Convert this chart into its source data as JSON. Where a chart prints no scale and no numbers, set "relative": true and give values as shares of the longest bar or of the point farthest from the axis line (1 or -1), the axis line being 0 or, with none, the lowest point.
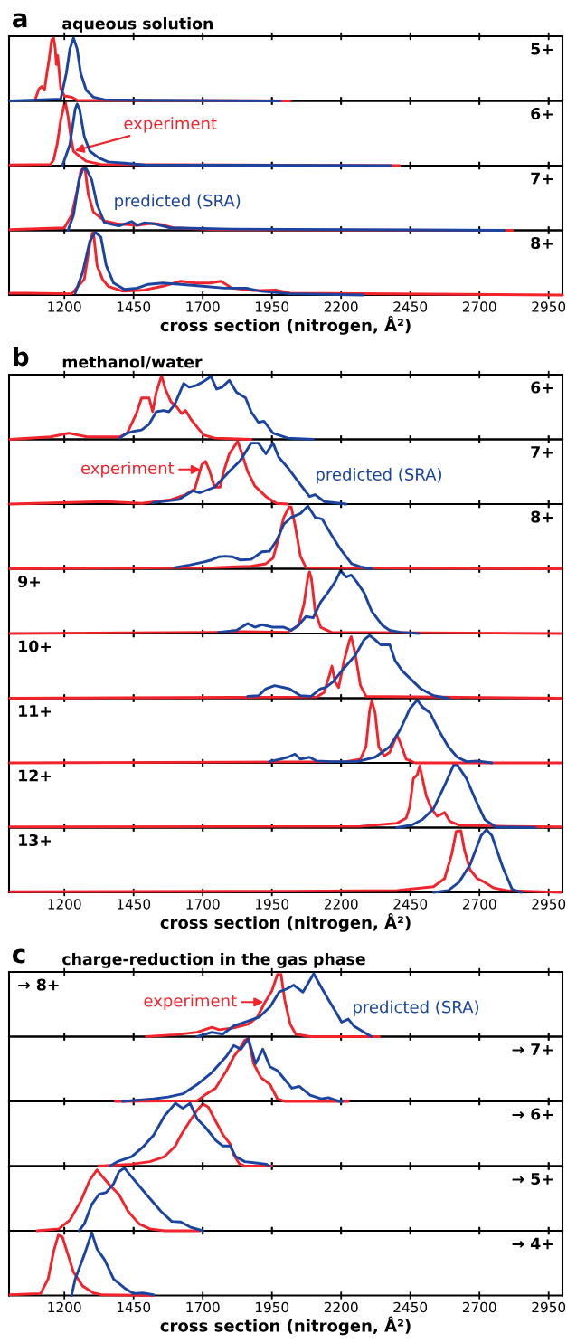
{
  "chart_data": [
    {
      "type": "line",
      "relative": true,
      "title": "a",
      "subtitle": "aqueous solution",
      "annotations": [
        "5+"
      ],
      "xlim": [
        1000,
        3000
      ],
      "xticks": [
        1200,
        1450,
        1700,
        1950,
        2200,
        2450,
        2700,
        2950
      ],
      "tick_labels": false,
      "series": [
        {
          "color": "#f2232b",
          "x": [
            1095,
            1108,
            1118,
            1128,
            1134,
            1145,
            1154,
            1161,
            1167,
            1171,
            1176,
            1187,
            1200,
            1226,
            1246,
            2016
          ],
          "values": [
            0.03,
            0.19,
            0.23,
            0.17,
            0.36,
            0.67,
            0.97,
            1.0,
            0.83,
            0.58,
            0.72,
            0.19,
            0.08,
            0.06,
            0.01,
            0
          ]
        },
        {
          "color": "#1a44a0",
          "x": [
            1003,
            1187,
            1207,
            1220,
            1233,
            1246,
            1259,
            1279,
            1305,
            1345,
            1490,
            1980
          ],
          "values": [
            0,
            0.03,
            0.44,
            0.83,
            1.0,
            0.83,
            0.44,
            0.17,
            0.06,
            0.02,
            0.01,
            0
          ]
        }
      ]
    },
    {
      "type": "line",
      "relative": true,
      "annotations": [
        "6+"
      ],
      "xlim": [
        1000,
        3000
      ],
      "xticks": [
        1200,
        1450,
        1700,
        1950,
        2200,
        2450,
        2700,
        2950
      ],
      "tick_labels": false,
      "series": [
        {
          "name": "experiment",
          "color": "#f2232b",
          "x": [
            1003,
            1150,
            1161,
            1174,
            1187,
            1200,
            1204,
            1213,
            1223,
            1233,
            1246,
            1279,
            1332,
            2411
          ],
          "values": [
            0.01,
            0.02,
            0.09,
            0.34,
            0.73,
            0.98,
            1.0,
            0.79,
            0.46,
            0.23,
            0.18,
            0.07,
            0.02,
            0
          ]
        },
        {
          "color": "#1a44a0",
          "x": [
            1193,
            1220,
            1239,
            1246,
            1255,
            1272,
            1292,
            1325,
            1358,
            1417,
            1490,
            2380
          ],
          "values": [
            0,
            0.34,
            0.9,
            0.98,
            0.9,
            0.46,
            0.23,
            0.12,
            0.06,
            0.04,
            0.01,
            0
          ]
        }
      ]
    },
    {
      "type": "line",
      "relative": true,
      "annotations": [
        "7+"
      ],
      "xlim": [
        1000,
        3000
      ],
      "xticks": [
        1200,
        1450,
        1700,
        1950,
        2200,
        2450,
        2700,
        2950
      ],
      "tick_labels": false,
      "series": [
        {
          "color": "#f2232b",
          "x": [
            1003,
            1200,
            1226,
            1246,
            1259,
            1266,
            1274,
            1286,
            1305,
            1345,
            1397,
            1463,
            1516,
            1542,
            1595,
            1753,
            2819
          ],
          "values": [
            0.01,
            0.04,
            0.24,
            0.63,
            0.94,
            0.98,
            1.0,
            0.58,
            0.29,
            0.15,
            0.1,
            0.08,
            0.11,
            0.1,
            0.04,
            0.01,
            0
          ]
        },
        {
          "name": "predicted (SRA)",
          "color": "#1a44a0",
          "x": [
            1213,
            1233,
            1253,
            1266,
            1279,
            1299,
            1318,
            1345,
            1397,
            1443,
            1463,
            1490,
            1529,
            1582,
            1805,
            2790
          ],
          "values": [
            0,
            0.24,
            0.8,
            0.97,
            0.98,
            0.8,
            0.41,
            0.12,
            0.07,
            0.14,
            0.08,
            0.12,
            0.1,
            0.04,
            0.02,
            0
          ]
        }
      ]
    },
    {
      "type": "line",
      "relative": true,
      "annotations": [
        "8+"
      ],
      "xlim": [
        1000,
        3000
      ],
      "xticks": [
        1200,
        1450,
        1700,
        1950,
        2200,
        2450,
        2700,
        2950
      ],
      "tick_labels": "x",
      "xlabel": "cross section (nitrogen, Å²)",
      "series": [
        {
          "color": "#f2232b",
          "x": [
            1003,
            1068,
            1226,
            1272,
            1292,
            1301,
            1305,
            1318,
            1338,
            1358,
            1411,
            1490,
            1555,
            1621,
            1674,
            1726,
            1766,
            1805,
            1884,
            1963,
            2016,
            3000
          ],
          "values": [
            0.03,
            0.03,
            0.02,
            0.25,
            0.81,
            0.98,
            1.0,
            0.47,
            0.25,
            0.14,
            0.06,
            0.08,
            0.14,
            0.22,
            0.19,
            0.19,
            0.22,
            0.11,
            0.07,
            0.08,
            0.03,
            0
          ]
        },
        {
          "color": "#1a44a0",
          "x": [
            1239,
            1266,
            1292,
            1312,
            1332,
            1351,
            1378,
            1417,
            1463,
            1503,
            1555,
            1621,
            1700,
            1779,
            1858,
            1911,
            2016,
            2279
          ],
          "values": [
            0.03,
            0.36,
            0.86,
            1.0,
            0.92,
            0.47,
            0.19,
            0.09,
            0.11,
            0.17,
            0.19,
            0.17,
            0.14,
            0.11,
            0.11,
            0.06,
            0.02,
            0
          ]
        }
      ]
    },
    {
      "type": "line",
      "relative": true,
      "title": "b",
      "subtitle": "methanol/water",
      "annotations": [
        "6+"
      ],
      "xlim": [
        1000,
        3000
      ],
      "xticks": [
        1200,
        1450,
        1700,
        1950,
        2200,
        2450,
        2700,
        2950
      ],
      "tick_labels": false,
      "series": [
        {
          "color": "#f2232b",
          "x": [
            1003,
            1150,
            1216,
            1282,
            1400,
            1427,
            1460,
            1479,
            1506,
            1519,
            1532,
            1548,
            1552,
            1565,
            1585,
            1605,
            1624,
            1638,
            1657,
            1677,
            1703,
            1743,
            1875
          ],
          "values": [
            0,
            0.04,
            0.1,
            0.04,
            0.04,
            0.1,
            0.41,
            0.66,
            0.66,
            0.44,
            0.75,
            0.97,
            1.0,
            0.8,
            0.6,
            0.52,
            0.41,
            0.46,
            0.32,
            0.21,
            0.07,
            0.02,
            0
          ]
        },
        {
          "color": "#1a44a0",
          "x": [
            1400,
            1427,
            1453,
            1479,
            1506,
            1532,
            1558,
            1578,
            1598,
            1631,
            1651,
            1677,
            1703,
            1730,
            1750,
            1770,
            1796,
            1822,
            1855,
            1875,
            1901,
            1921,
            1954,
            2007,
            2099
          ],
          "values": [
            0.02,
            0.1,
            0.13,
            0.15,
            0.24,
            0.44,
            0.46,
            0.44,
            0.55,
            0.89,
            0.83,
            0.86,
            0.92,
            1.0,
            0.8,
            0.83,
            0.94,
            0.75,
            0.66,
            0.44,
            0.27,
            0.29,
            0.1,
            0.02,
            0
          ]
        }
      ]
    },
    {
      "type": "line",
      "relative": true,
      "annotations": [
        "7+"
      ],
      "xlim": [
        1000,
        3000
      ],
      "xticks": [
        1200,
        1450,
        1700,
        1950,
        2200,
        2450,
        2700,
        2950
      ],
      "tick_labels": false,
      "series": [
        {
          "name": "experiment",
          "color": "#f2232b",
          "x": [
            1003,
            1348,
            1479,
            1585,
            1638,
            1671,
            1697,
            1710,
            1723,
            1743,
            1763,
            1776,
            1796,
            1822,
            1826,
            1842,
            1862,
            1888,
            1928,
            1967,
            2007
          ],
          "values": [
            0,
            0.04,
            0.01,
            0.07,
            0.15,
            0.24,
            0.63,
            0.68,
            0.55,
            0.27,
            0.27,
            0.52,
            0.8,
            0.97,
            1.0,
            0.8,
            0.52,
            0.29,
            0.12,
            0.01,
            0
          ]
        },
        {
          "name": "predicted (SRA)",
          "color": "#1a44a0",
          "x": [
            1519,
            1611,
            1664,
            1690,
            1743,
            1796,
            1835,
            1875,
            1901,
            1928,
            1954,
            1974,
            2007,
            2046,
            2086,
            2106,
            2139,
            2218
          ],
          "values": [
            0.02,
            0.07,
            0.21,
            0.18,
            0.27,
            0.52,
            0.69,
            0.97,
            0.97,
            0.8,
            0.97,
            0.75,
            0.58,
            0.35,
            0.12,
            0.15,
            0.04,
            0
          ]
        }
      ]
    },
    {
      "type": "line",
      "relative": true,
      "annotations": [
        "8+"
      ],
      "xlim": [
        1000,
        3000
      ],
      "xticks": [
        1200,
        1450,
        1700,
        1950,
        2200,
        2450,
        2700,
        2950
      ],
      "tick_labels": false,
      "series": [
        {
          "color": "#f2232b",
          "x": [
            1003,
            1743,
            1875,
            1928,
            1954,
            1974,
            1993,
            2013,
            2020,
            2033,
            2053,
            2073,
            2995
          ],
          "values": [
            0,
            0.02,
            0.04,
            0.08,
            0.17,
            0.48,
            0.82,
            0.99,
            0.98,
            0.71,
            0.2,
            0.02,
            0
          ]
        },
        {
          "color": "#1a44a0",
          "x": [
            1599,
            1652,
            1705,
            1731,
            1757,
            1783,
            1809,
            1836,
            1875,
            1914,
            1941,
            1967,
            1993,
            2020,
            2053,
            2080,
            2106,
            2132,
            2165,
            2198,
            2238,
            2271,
            2311
          ],
          "values": [
            0.02,
            0.06,
            0.11,
            0.14,
            0.19,
            0.2,
            0.19,
            0.14,
            0.15,
            0.27,
            0.28,
            0.45,
            0.71,
            0.82,
            0.88,
            1.0,
            0.82,
            0.79,
            0.54,
            0.31,
            0.08,
            0.03,
            0
          ]
        }
      ]
    },
    {
      "type": "line",
      "relative": true,
      "annotations": [
        "9+"
      ],
      "xlim": [
        1000,
        3000
      ],
      "xticks": [
        1200,
        1450,
        1700,
        1950,
        2200,
        2450,
        2700,
        2950
      ],
      "tick_labels": false,
      "series": [
        {
          "color": "#f2232b",
          "x": [
            1003,
            1743,
            1848,
            2007,
            2046,
            2066,
            2079,
            2086,
            2093,
            2106,
            2126,
            2165,
            2995
          ],
          "values": [
            0,
            0.02,
            0.03,
            0.02,
            0.13,
            0.47,
            0.87,
            0.98,
            0.87,
            0.36,
            0.1,
            0.02,
            0
          ]
        },
        {
          "color": "#1a44a0",
          "x": [
            1756,
            1822,
            1862,
            1888,
            1914,
            1954,
            1993,
            2020,
            2046,
            2073,
            2099,
            2126,
            2152,
            2178,
            2198,
            2218,
            2237,
            2257,
            2283,
            2310,
            2349,
            2376,
            2415,
            2481
          ],
          "values": [
            0.02,
            0.05,
            0.16,
            0.1,
            0.14,
            0.1,
            0.1,
            0.05,
            0.13,
            0.27,
            0.25,
            0.5,
            0.65,
            0.82,
            1.0,
            0.9,
            0.93,
            0.82,
            0.65,
            0.36,
            0.13,
            0.05,
            0.02,
            0
          ]
        }
      ]
    },
    {
      "type": "line",
      "relative": true,
      "annotations": [
        "10+"
      ],
      "xlim": [
        1000,
        3000
      ],
      "xticks": [
        1200,
        1450,
        1700,
        1950,
        2200,
        2450,
        2700,
        2950
      ],
      "tick_labels": false,
      "series": [
        {
          "color": "#f2232b",
          "x": [
            1003,
            2112,
            2138,
            2158,
            2167,
            2178,
            2191,
            2211,
            2231,
            2237,
            2251,
            2270,
            2290,
            2995
          ],
          "values": [
            0,
            0.02,
            0.09,
            0.37,
            0.51,
            0.26,
            0.17,
            0.6,
            0.93,
            0.98,
            0.71,
            0.2,
            0.03,
            0
          ]
        },
        {
          "color": "#1a44a0",
          "x": [
            1862,
            1902,
            1928,
            1960,
            1993,
            2013,
            2053,
            2092,
            2125,
            2145,
            2171,
            2211,
            2251,
            2283,
            2303,
            2323,
            2343,
            2376,
            2395,
            2422,
            2455,
            2488,
            2534,
            2587
          ],
          "values": [
            0.03,
            0.04,
            0.15,
            0.2,
            0.17,
            0.15,
            0.04,
            0.03,
            0.15,
            0.17,
            0.26,
            0.48,
            0.68,
            0.93,
            1.0,
            0.93,
            0.85,
            0.85,
            0.6,
            0.43,
            0.29,
            0.15,
            0.04,
            0
          ]
        }
      ]
    },
    {
      "type": "line",
      "relative": true,
      "annotations": [
        "11+"
      ],
      "xlim": [
        1000,
        3000
      ],
      "xticks": [
        1200,
        1450,
        1700,
        1950,
        2200,
        2450,
        2700,
        2950
      ],
      "tick_labels": false,
      "series": [
        {
          "color": "#f2232b",
          "x": [
            1003,
            2218,
            2270,
            2290,
            2303,
            2311,
            2323,
            2336,
            2356,
            2376,
            2395,
            2402,
            2415,
            2435,
            2468,
            2995
          ],
          "values": [
            0,
            0.02,
            0.06,
            0.26,
            0.83,
            0.99,
            0.8,
            0.26,
            0.11,
            0.17,
            0.37,
            0.44,
            0.31,
            0.06,
            0,
            0
          ]
        },
        {
          "color": "#1a44a0",
          "x": [
            1941,
            1981,
            2007,
            2033,
            2053,
            2086,
            2112,
            2165,
            2257,
            2323,
            2376,
            2415,
            2448,
            2475,
            2494,
            2521,
            2554,
            2587,
            2620,
            2653,
            2692,
            2745
          ],
          "values": [
            0.02,
            0.06,
            0.09,
            0.14,
            0.06,
            0.09,
            0.03,
            0.02,
            0.02,
            0.09,
            0.26,
            0.54,
            0.86,
            1.0,
            0.89,
            0.8,
            0.51,
            0.26,
            0.09,
            0.02,
            0.03,
            0
          ]
        }
      ]
    },
    {
      "type": "line",
      "relative": true,
      "annotations": [
        "12+"
      ],
      "xlim": [
        1000,
        3000
      ],
      "xticks": [
        1200,
        1450,
        1700,
        1950,
        2200,
        2450,
        2700,
        2950
      ],
      "tick_labels": false,
      "series": [
        {
          "color": "#f2232b",
          "x": [
            1003,
            2270,
            2402,
            2435,
            2448,
            2461,
            2475,
            2484,
            2494,
            2508,
            2527,
            2547,
            2574,
            2593,
            2626,
            2798,
            2995
          ],
          "values": [
            0.01,
            0.02,
            0.07,
            0.15,
            0.33,
            0.78,
            0.84,
            0.98,
            0.78,
            0.5,
            0.3,
            0.18,
            0.24,
            0.1,
            0.04,
            0.02,
            0.01
          ]
        },
        {
          "color": "#1a44a0",
          "x": [
            2402,
            2455,
            2494,
            2534,
            2574,
            2607,
            2620,
            2653,
            2686,
            2719,
            2758,
            2900
          ],
          "values": [
            0,
            0.04,
            0.13,
            0.3,
            0.67,
            1.0,
            1.0,
            0.78,
            0.44,
            0.13,
            0.01,
            0
          ]
        }
      ]
    },
    {
      "type": "line",
      "relative": true,
      "annotations": [
        "13+"
      ],
      "xlim": [
        1000,
        3000
      ],
      "xticks": [
        1200,
        1450,
        1700,
        1950,
        2200,
        2450,
        2700,
        2950
      ],
      "tick_labels": "x",
      "xlabel": "cross section (nitrogen, Å²)",
      "series": [
        {
          "color": "#f2232b",
          "x": [
            1003,
            2007,
            2402,
            2534,
            2574,
            2600,
            2616,
            2633,
            2646,
            2666,
            2692,
            2719,
            2752,
            2798,
            2995
          ],
          "values": [
            0.01,
            0.02,
            0.03,
            0.09,
            0.22,
            0.61,
            0.97,
            0.98,
            0.67,
            0.36,
            0.22,
            0.16,
            0.07,
            0.03,
            0
          ]
        },
        {
          "color": "#1a44a0",
          "x": [
            2534,
            2587,
            2626,
            2666,
            2706,
            2725,
            2745,
            2785,
            2818,
            2851
          ],
          "values": [
            0,
            0.03,
            0.16,
            0.44,
            0.9,
            1.0,
            0.9,
            0.39,
            0.05,
            0
          ]
        }
      ]
    },
    {
      "type": "line",
      "relative": true,
      "title": "c",
      "subtitle": "charge-reduction in the gas phase",
      "annotations": [
        "→ 8+"
      ],
      "xlim": [
        1000,
        3000
      ],
      "xticks": [
        1200,
        1450,
        1700,
        1950,
        2200,
        2450,
        2700,
        2950
      ],
      "tick_labels": false,
      "series": [
        {
          "name": "experiment",
          "color": "#f2232b",
          "x": [
            1496,
            1601,
            1680,
            1733,
            1759,
            1812,
            1865,
            1897,
            1924,
            1950,
            1970,
            1983,
            1996,
            2016,
            2036,
            2088,
            2338
          ],
          "values": [
            0,
            0.03,
            0.07,
            0.15,
            0.11,
            0.14,
            0.2,
            0.31,
            0.54,
            0.73,
            0.99,
            0.99,
            0.59,
            0.2,
            0.04,
            0,
            0
          ]
        },
        {
          "name": "predicted (SRA)",
          "color": "#1a44a0",
          "x": [
            1680,
            1733,
            1772,
            1812,
            1865,
            1904,
            1944,
            1976,
            2003,
            2029,
            2062,
            2101,
            2128,
            2154,
            2180,
            2202,
            2226,
            2246,
            2286,
            2310
          ],
          "values": [
            0,
            0.07,
            0.04,
            0.17,
            0.25,
            0.31,
            0.48,
            0.71,
            0.76,
            0.82,
            0.71,
            1.0,
            0.79,
            0.59,
            0.4,
            0.23,
            0.28,
            0.17,
            0.06,
            0
          ]
        }
      ]
    },
    {
      "type": "line",
      "relative": true,
      "annotations": [
        "→ 7+"
      ],
      "xlim": [
        1000,
        3000
      ],
      "xticks": [
        1200,
        1450,
        1700,
        1950,
        2200,
        2450,
        2700,
        2950
      ],
      "tick_labels": false,
      "series": [
        {
          "color": "#f2232b",
          "x": [
            1384,
            1680,
            1707,
            1746,
            1786,
            1812,
            1832,
            1851,
            1865,
            1884,
            1910,
            1943,
            1970,
            1996,
            2226
          ],
          "values": [
            0,
            0.01,
            0.1,
            0.21,
            0.49,
            0.71,
            0.83,
            0.97,
            1.0,
            0.6,
            0.38,
            0.27,
            0.04,
            0,
            0
          ]
        },
        {
          "color": "#1a44a0",
          "x": [
            1410,
            1522,
            1575,
            1628,
            1680,
            1733,
            1786,
            1812,
            1838,
            1865,
            1891,
            1917,
            1943,
            1970,
            1996,
            2022,
            2049,
            2088,
            2128,
            2154,
            2193,
            2205
          ],
          "values": [
            0,
            0.04,
            0.07,
            0.12,
            0.27,
            0.46,
            0.72,
            0.89,
            0.83,
            1.0,
            0.6,
            0.83,
            0.55,
            0.49,
            0.35,
            0.21,
            0.24,
            0.1,
            0.04,
            0.06,
            0,
            0
          ]
        }
      ]
    },
    {
      "type": "line",
      "relative": true,
      "annotations": [
        "→ 6+"
      ],
      "xlim": [
        1000,
        3000
      ],
      "xticks": [
        1200,
        1450,
        1700,
        1950,
        2200,
        2450,
        2700,
        2950
      ],
      "tick_labels": false,
      "series": [
        {
          "color": "#f2232b",
          "x": [
            1325,
            1443,
            1509,
            1562,
            1601,
            1621,
            1654,
            1680,
            1700,
            1720,
            1746,
            1773,
            1799,
            1812,
            1832,
            1852,
            1950
          ],
          "values": [
            0,
            0.03,
            0.07,
            0.15,
            0.32,
            0.49,
            0.72,
            0.89,
            0.99,
            0.94,
            0.72,
            0.5,
            0.35,
            0.18,
            0.04,
            0,
            0
          ]
        },
        {
          "color": "#1a44a0",
          "x": [
            1365,
            1391,
            1443,
            1483,
            1522,
            1562,
            1601,
            1628,
            1654,
            1680,
            1707,
            1733,
            1747,
            1773,
            1799,
            1819,
            1852,
            1891,
            1930,
            1940
          ],
          "values": [
            0,
            0.07,
            0.15,
            0.3,
            0.49,
            0.8,
            1.0,
            0.92,
            1.0,
            0.75,
            0.63,
            0.49,
            0.41,
            0.32,
            0.32,
            0.15,
            0.07,
            0.05,
            0.03,
            0
          ]
        }
      ]
    },
    {
      "type": "line",
      "relative": true,
      "annotations": [
        "→ 5+"
      ],
      "xlim": [
        1000,
        3000
      ],
      "xticks": [
        1200,
        1450,
        1700,
        1950,
        2200,
        2450,
        2700,
        2950
      ],
      "tick_labels": false,
      "series": [
        {
          "color": "#f2232b",
          "x": [
            1101,
            1180,
            1220,
            1259,
            1292,
            1318,
            1338,
            1365,
            1397,
            1430,
            1470,
            1509,
            1562,
            1690
          ],
          "values": [
            0,
            0.03,
            0.17,
            0.47,
            0.81,
            0.97,
            0.86,
            0.72,
            0.58,
            0.31,
            0.11,
            0.03,
            0,
            0
          ]
        },
        {
          "color": "#1a44a0",
          "x": [
            1253,
            1272,
            1299,
            1325,
            1351,
            1378,
            1397,
            1417,
            1443,
            1496,
            1549,
            1588,
            1621,
            1654,
            1700
          ],
          "values": [
            0,
            0.11,
            0.42,
            0.58,
            0.61,
            0.75,
            0.94,
            1.0,
            0.86,
            0.58,
            0.31,
            0.15,
            0.14,
            0.06,
            0
          ]
        }
      ]
    },
    {
      "type": "line",
      "relative": true,
      "annotations": [
        "→ 4+"
      ],
      "xlim": [
        1000,
        3000
      ],
      "xticks": [
        1200,
        1450,
        1700,
        1950,
        2200,
        2450,
        2700,
        2950
      ],
      "tick_labels": "x",
      "xlabel": "cross section (nitrogen, Å²)",
      "series": [
        {
          "color": "#f2232b",
          "x": [
            1003,
            1114,
            1141,
            1161,
            1178,
            1193,
            1213,
            1233,
            1266,
            1305,
            1338,
            1522
          ],
          "values": [
            0.01,
            0.03,
            0.26,
            0.7,
            0.96,
            0.93,
            0.65,
            0.37,
            0.15,
            0.04,
            0.01,
            0
          ]
        },
        {
          "color": "#1a44a0",
          "x": [
            1226,
            1239,
            1272,
            1299,
            1318,
            1345,
            1378,
            1417,
            1450,
            1483,
            1522
          ],
          "values": [
            0,
            0.26,
            0.65,
            1.0,
            0.74,
            0.57,
            0.26,
            0.12,
            0.03,
            0.04,
            0.01
          ]
        }
      ]
    }
  ]
}
